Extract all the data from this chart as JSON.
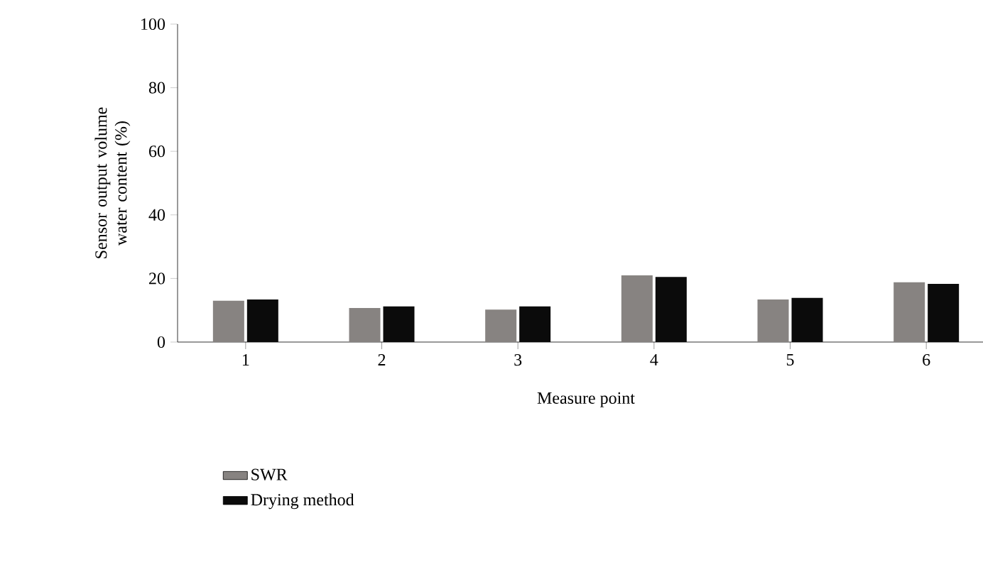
{
  "chart_data": {
    "type": "bar",
    "xlabel": "Measure point",
    "ylabel": "Sensor output volume water content (%)",
    "categories": [
      "1",
      "2",
      "3",
      "4",
      "5",
      "6"
    ],
    "series": [
      {
        "name": "SWR",
        "color": "#878381",
        "values": [
          13.0,
          10.7,
          10.2,
          21.0,
          13.4,
          18.8
        ]
      },
      {
        "name": "Drying method",
        "color": "#0b0b0b",
        "values": [
          13.4,
          11.2,
          11.2,
          20.5,
          13.9,
          18.3
        ]
      }
    ],
    "ylim": [
      0,
      100
    ],
    "yticks": [
      0,
      20,
      40,
      60,
      80,
      100
    ],
    "legend": "bottom left",
    "grid": false
  }
}
